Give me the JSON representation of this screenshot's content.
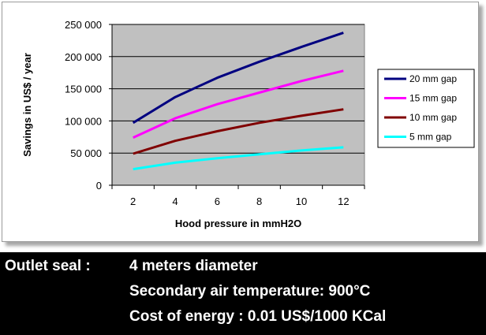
{
  "chart_data": {
    "type": "line",
    "title": "",
    "xlabel": "Hood pressure in mmH2O",
    "ylabel": "Savings in US$ / year",
    "x": [
      2,
      4,
      6,
      8,
      10,
      12
    ],
    "xlim": [
      1,
      13
    ],
    "ylim": [
      0,
      250000
    ],
    "y_ticks": [
      0,
      50000,
      100000,
      150000,
      200000,
      250000
    ],
    "y_tick_labels": [
      "0",
      "50 000",
      "100 000",
      "150 000",
      "200 000",
      "250 000"
    ],
    "x_tick_labels": [
      "2",
      "4",
      "6",
      "8",
      "10",
      "12"
    ],
    "grid": "horizontal",
    "plot_background": "#c0c0c0",
    "legend_position": "right",
    "series": [
      {
        "name": "20 mm gap",
        "color": "#000080",
        "values": [
          97000,
          137000,
          167000,
          192000,
          215000,
          237000
        ]
      },
      {
        "name": "15 mm gap",
        "color": "#ff00ff",
        "values": [
          74000,
          104000,
          126000,
          144000,
          162000,
          178000
        ]
      },
      {
        "name": "10 mm gap",
        "color": "#800000",
        "values": [
          49000,
          69000,
          84000,
          97000,
          108000,
          118000
        ]
      },
      {
        "name": "5 mm gap",
        "color": "#00ffff",
        "values": [
          25000,
          35000,
          42000,
          48000,
          54000,
          59000
        ]
      }
    ]
  },
  "info": {
    "rows": [
      {
        "key": "Outlet seal :",
        "value": "4 meters diameter"
      },
      {
        "key": "",
        "value": "Secondary air temperature: 900°C"
      },
      {
        "key": "",
        "value": "Cost of energy : 0.01 US$/1000 KCal"
      }
    ]
  }
}
